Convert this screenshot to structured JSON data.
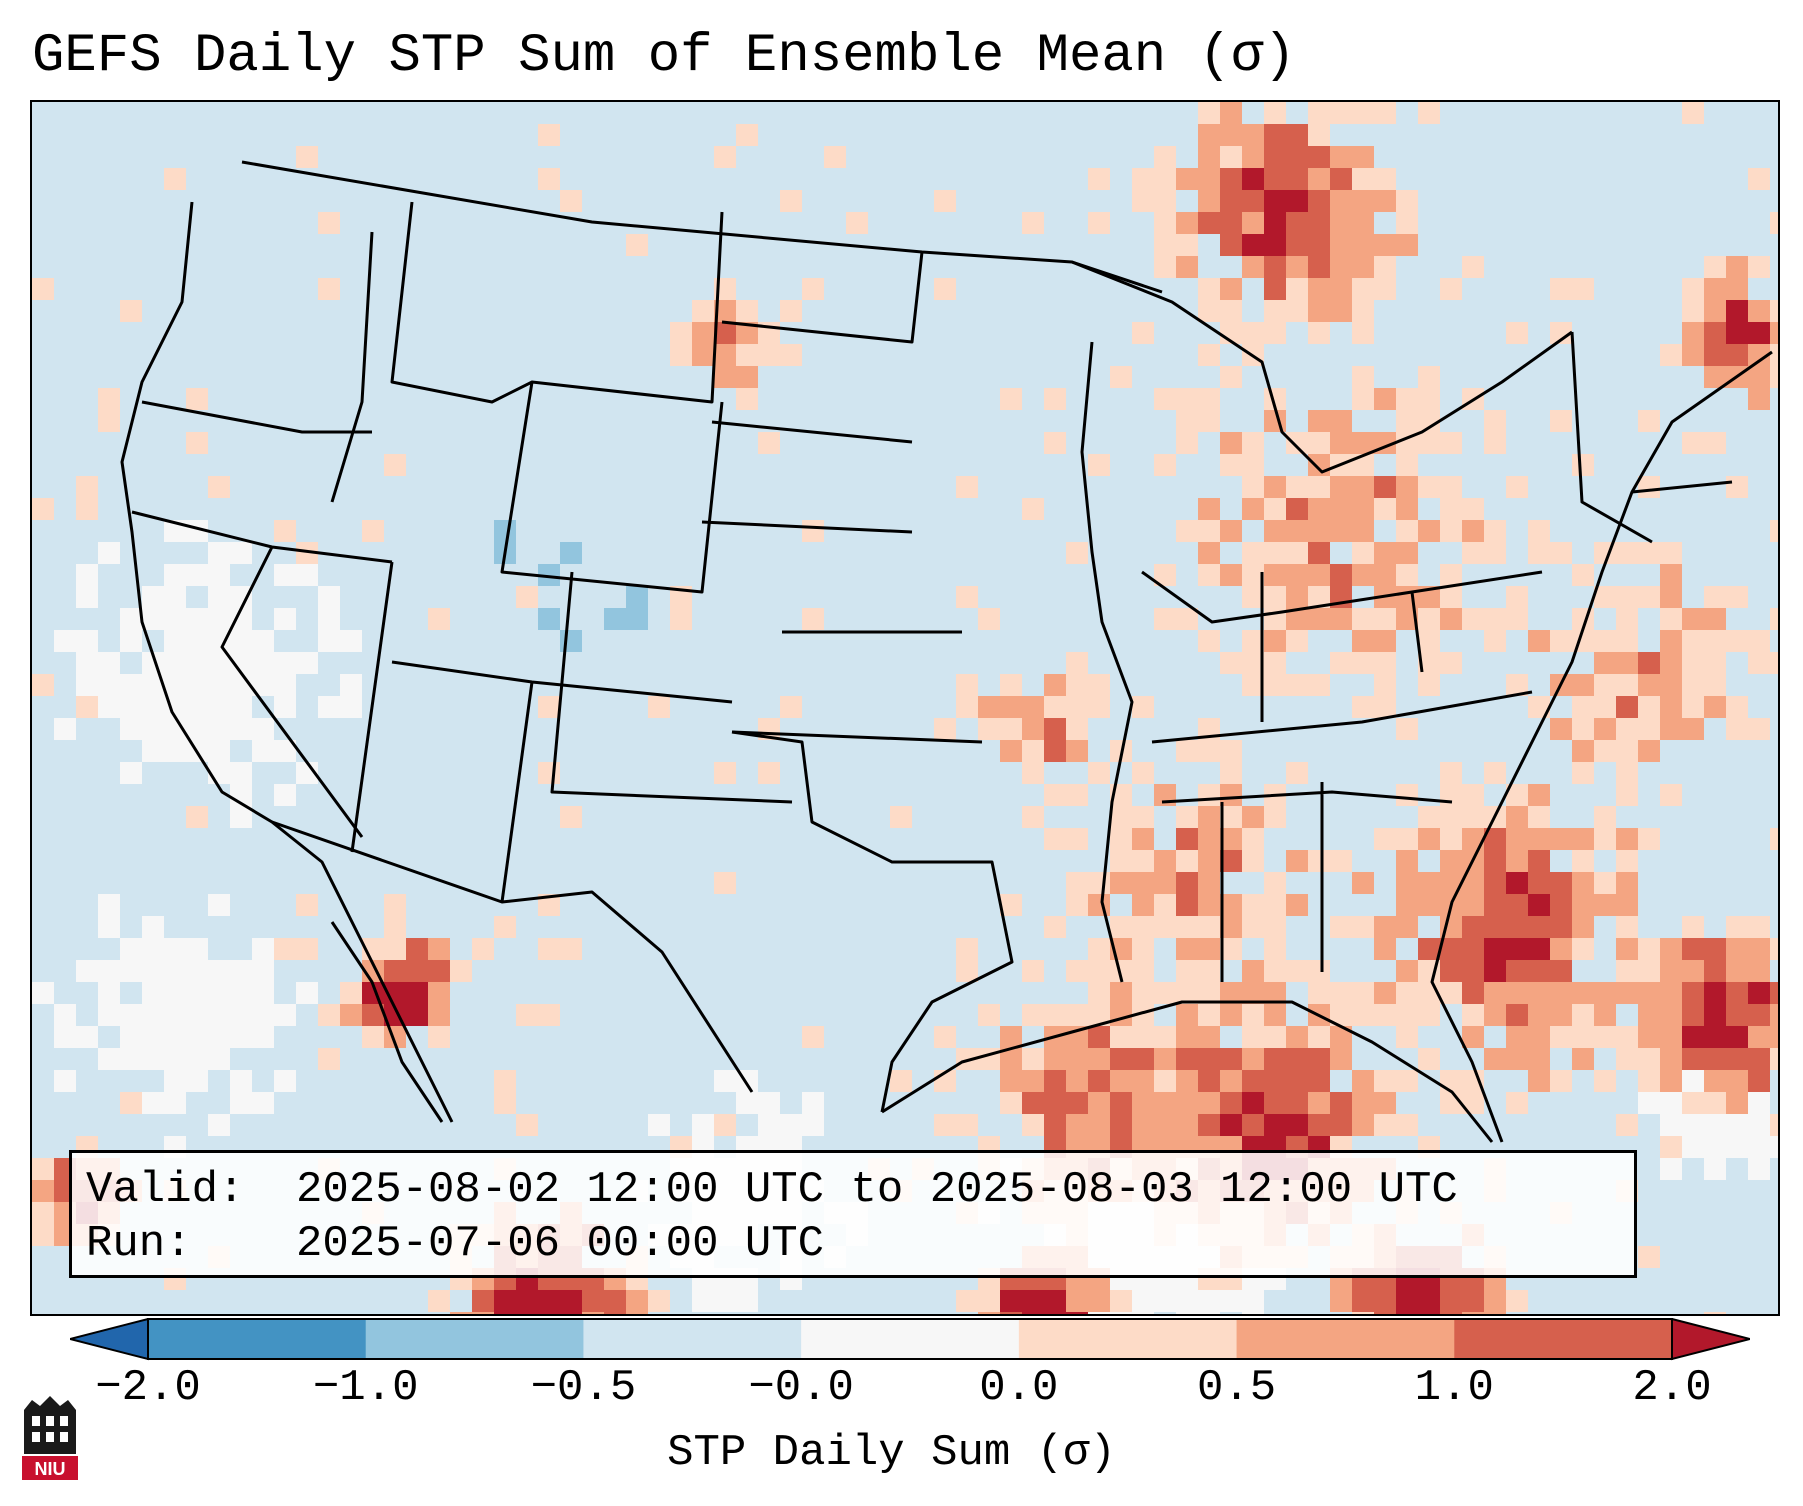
{
  "title": "GEFS Daily STP Sum of Ensemble Mean (σ)",
  "valid_label": "Valid:",
  "valid_value": "2025-08-02 12:00 UTC to 2025-08-03 12:00 UTC",
  "run_label": "Run:",
  "run_value": "2025-07-06 00:00 UTC",
  "colorbar": {
    "label": "STP Daily Sum (σ)",
    "ticks": [
      "−2.0",
      "−1.0",
      "−0.5",
      "−0.0",
      "0.0",
      "0.5",
      "1.0",
      "2.0"
    ],
    "colors": [
      "#2166ac",
      "#4393c3",
      "#92c5de",
      "#d1e5f0",
      "#f7f7f7",
      "#fddbc7",
      "#f4a582",
      "#d6604d",
      "#b2182b"
    ]
  },
  "colors": {
    "background": "#d1e5f0",
    "near_zero": "#f7f7f7",
    "light_pos": "#fddbc7",
    "mid_pos": "#f4a582",
    "high_pos": "#d6604d",
    "max_pos": "#b2182b",
    "light_neg": "#92c5de"
  },
  "logo": {
    "text": "NIU",
    "icon": "niu-logo-icon"
  }
}
